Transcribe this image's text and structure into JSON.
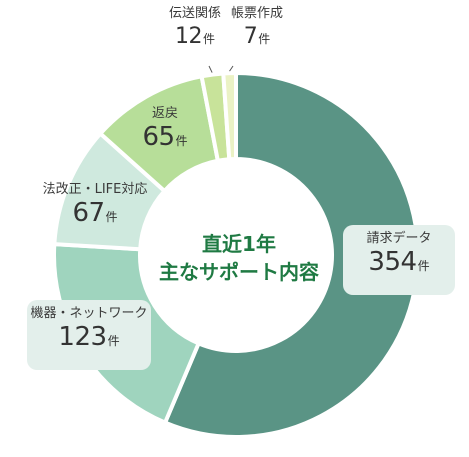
{
  "chart_data": {
    "type": "pie",
    "donut": true,
    "center_title": [
      "直近1年",
      "主なサポート内容"
    ],
    "unit": "件",
    "categories": [
      "請求データ",
      "機器・ネットワーク",
      "法改正・LIFE対応",
      "返戻",
      "伝送関係",
      "帳票作成"
    ],
    "values": [
      354,
      123,
      67,
      65,
      12,
      7
    ],
    "colors": [
      "#5a9485",
      "#9fd4be",
      "#cfe9de",
      "#b7de99",
      "#c8e39a",
      "#ebf2c5"
    ]
  }
}
